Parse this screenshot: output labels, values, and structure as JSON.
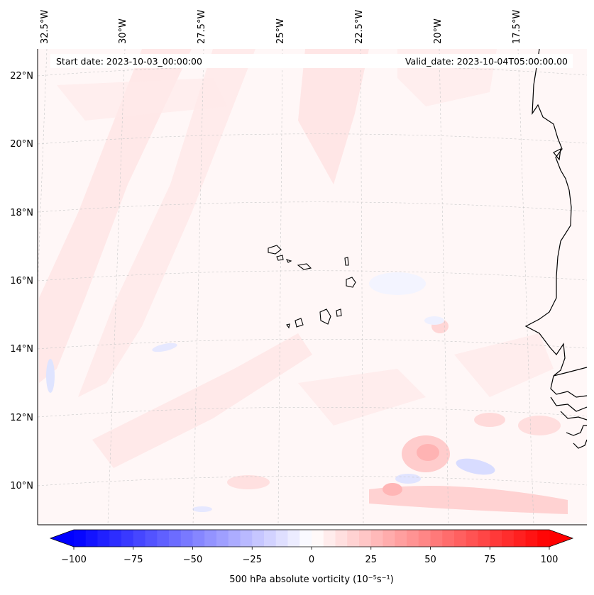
{
  "map": {
    "start_label": "Start date: 2023-10-03_00:00:00",
    "valid_label": "Valid_date: 2023-10-04T05:00:00.00",
    "lon_labels": [
      "32.5°W",
      "30°W",
      "27.5°W",
      "25°W",
      "22.5°W",
      "20°W",
      "17.5°W"
    ],
    "lat_labels": [
      "22°N",
      "20°N",
      "18°N",
      "16°N",
      "14°N",
      "12°N",
      "10°N"
    ]
  },
  "colorbar": {
    "title": "500 hPa absolute vorticity (10⁻⁵s⁻¹)",
    "ticks": [
      "−100",
      "−75",
      "−50",
      "−25",
      "0",
      "25",
      "50",
      "75",
      "100"
    ],
    "range": [
      -100,
      100
    ],
    "colormap": "bwr",
    "low_color": "#0000ff",
    "mid_color": "#ffffff",
    "high_color": "#ff0000"
  }
}
